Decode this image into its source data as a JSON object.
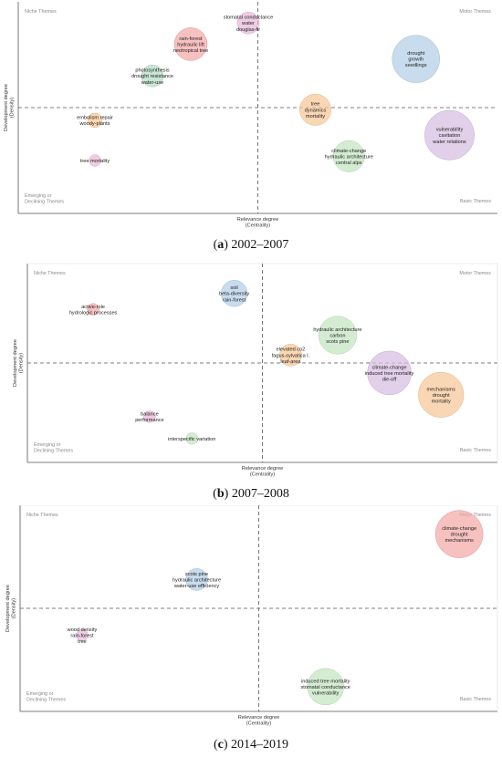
{
  "chart_data": [
    {
      "type": "scatter",
      "caption_letter": "a",
      "caption_period": "2002–2007",
      "xlabel": "Relevance degree",
      "xlabel_sub": "(Centrality)",
      "ylabel": "Development degree",
      "ylabel_sub": "(Density)",
      "quadrants": {
        "top_left": [
          "Niche Themes"
        ],
        "top_right": [
          "Motor Themes"
        ],
        "bottom_left": [
          "Emerging or",
          "Declining Themes"
        ],
        "bottom_right": [
          "Basic Themes"
        ]
      },
      "points": [
        {
          "name": "stomatal conductance / water / douglas-fir",
          "lines": [
            "stomatal conductance",
            "water",
            "douglas-fir"
          ],
          "x": 0.48,
          "y": 0.9,
          "size": 0.2,
          "color": "#e9b8da"
        },
        {
          "name": "rain-forest / hydraulic lift / neotropical tree",
          "lines": [
            "rain-forest",
            "hydraulic lift",
            "neotropical tree"
          ],
          "x": 0.36,
          "y": 0.8,
          "size": 0.35,
          "color": "#f4a9a8"
        },
        {
          "name": "photosynthesis / drought resistance / water-use",
          "lines": [
            "photosynthesis",
            "drought resistance",
            "water-use"
          ],
          "x": 0.28,
          "y": 0.65,
          "size": 0.2,
          "color": "#b3dcc4"
        },
        {
          "name": "drought / growth / seedlings",
          "lines": [
            "drought",
            "growth",
            "seedlings"
          ],
          "x": 0.83,
          "y": 0.73,
          "size": 0.55,
          "color": "#b3cfe6"
        },
        {
          "name": "tree / dynamics / mortality",
          "lines": [
            "tree",
            "dynamics",
            "mortality"
          ],
          "x": 0.62,
          "y": 0.49,
          "size": 0.33,
          "color": "#f8c897"
        },
        {
          "name": "embolism repair / woody-plants",
          "lines": [
            "embolism repair",
            "woody-plants"
          ],
          "x": 0.16,
          "y": 0.44,
          "size": 0.1,
          "color": "#f8c897"
        },
        {
          "name": "vulnerability / cavitation / water relations",
          "lines": [
            "vulnerability",
            "cavitation",
            "water relations"
          ],
          "x": 0.9,
          "y": 0.37,
          "size": 0.58,
          "color": "#d7bde2"
        },
        {
          "name": "tree mortality",
          "lines": [
            "tree mortality"
          ],
          "x": 0.16,
          "y": 0.25,
          "size": 0.06,
          "color": "#e9b8da"
        },
        {
          "name": "climate-change / hydraulic architecture / central alps",
          "lines": [
            "climate-change",
            "hydraulic architecture",
            "central alps"
          ],
          "x": 0.69,
          "y": 0.27,
          "size": 0.33,
          "color": "#c3e6c0"
        }
      ]
    },
    {
      "type": "scatter",
      "caption_letter": "b",
      "caption_period": "2007–2008",
      "xlabel": "Relevance degree",
      "xlabel_sub": "(Centrality)",
      "ylabel": "Development degree",
      "ylabel_sub": "(Density)",
      "quadrants": {
        "top_left": [
          "Niche Themes"
        ],
        "top_right": [
          "Motor Themes"
        ],
        "bottom_left": [
          "Emerging or",
          "Declining Themes"
        ],
        "bottom_right": [
          "Basic Themes"
        ]
      },
      "points": [
        {
          "name": "soil / beta-diversity / rain-forest",
          "lines": [
            "soil",
            "beta-diversity",
            "rain-forest"
          ],
          "x": 0.44,
          "y": 0.85,
          "size": 0.26,
          "color": "#b3cfe6"
        },
        {
          "name": "active-role / hydrologic processes",
          "lines": [
            "active-role",
            "hydrologic processes"
          ],
          "x": 0.14,
          "y": 0.77,
          "size": 0.06,
          "color": "#f4a9a8"
        },
        {
          "name": "hydraulic architecture / carbon / scots pine",
          "lines": [
            "hydraulic architecture",
            "carbon",
            "scots pine"
          ],
          "x": 0.66,
          "y": 0.64,
          "size": 0.42,
          "color": "#c3e6c0"
        },
        {
          "name": "elevated co2 / fagus-sylvatica l. / leaf-area",
          "lines": [
            "elevated co2",
            "fagus-sylvatica l.",
            "leaf-area"
          ],
          "x": 0.56,
          "y": 0.54,
          "size": 0.2,
          "color": "#f8c897"
        },
        {
          "name": "climate-change / induced tree mortality / die-off",
          "lines": [
            "climate-change",
            "induced tree mortality",
            "die-off"
          ],
          "x": 0.77,
          "y": 0.45,
          "size": 0.5,
          "color": "#d7bde2"
        },
        {
          "name": "mechanisms / drought / mortality",
          "lines": [
            "mechanisms",
            "drought",
            "mortality"
          ],
          "x": 0.88,
          "y": 0.34,
          "size": 0.52,
          "color": "#f8c897"
        },
        {
          "name": "balance / performance",
          "lines": [
            "balance",
            "performance"
          ],
          "x": 0.26,
          "y": 0.23,
          "size": 0.06,
          "color": "#e9b8da"
        },
        {
          "name": "interspecific variation",
          "lines": [
            "interspecific variation"
          ],
          "x": 0.35,
          "y": 0.12,
          "size": 0.06,
          "color": "#c3e6c0"
        }
      ]
    },
    {
      "type": "scatter",
      "caption_letter": "c",
      "caption_period": "2014–2019",
      "xlabel": "Relevance degree",
      "xlabel_sub": "(Centrality)",
      "ylabel": "Development degree",
      "ylabel_sub": "(Density)",
      "quadrants": {
        "top_left": [
          "Niche Themes"
        ],
        "top_right": [
          "Motor Themes"
        ],
        "bottom_left": [
          "Emerging or",
          "Declining Themes"
        ],
        "bottom_right": [
          "Basic Themes"
        ]
      },
      "points": [
        {
          "name": "climate-change / drought / mechanisms",
          "lines": [
            "climate-change",
            "drought",
            "mechanisms"
          ],
          "x": 0.92,
          "y": 0.86,
          "size": 0.55,
          "color": "#f4a9a8"
        },
        {
          "name": "scots pine / hydraulic architecture / water-use efficiency",
          "lines": [
            "scots pine",
            "hydraulic architecture",
            "water-use efficiency"
          ],
          "x": 0.37,
          "y": 0.64,
          "size": 0.2,
          "color": "#b3cfe6"
        },
        {
          "name": "wood density / rain-forest / tree",
          "lines": [
            "wood density",
            "rain-forest",
            "tree"
          ],
          "x": 0.13,
          "y": 0.37,
          "size": 0.06,
          "color": "#e9b8da"
        },
        {
          "name": "induced tree mortality / stomatal conductance / vulnerability",
          "lines": [
            "induced tree mortality",
            "stomatal conductance",
            "vulnerability"
          ],
          "x": 0.64,
          "y": 0.12,
          "size": 0.4,
          "color": "#c3e6c0"
        }
      ]
    }
  ]
}
